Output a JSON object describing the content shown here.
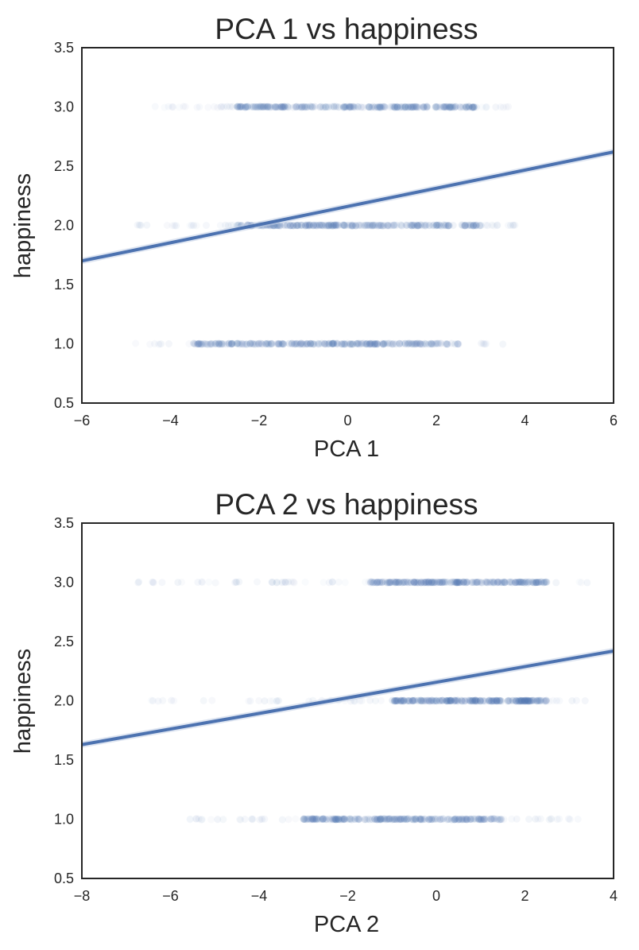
{
  "colors": {
    "series": "#4c72b0",
    "band": "#c3cfe6",
    "axis": "#262626",
    "background": "#ffffff"
  },
  "chart_data": [
    {
      "type": "scatter",
      "title": "PCA 1 vs happiness",
      "xlabel": "PCA 1",
      "ylabel": "happiness",
      "xlim": [
        -6,
        6
      ],
      "ylim": [
        0.5,
        3.5
      ],
      "xticks": [
        "−6",
        "−4",
        "−2",
        "0",
        "2",
        "4",
        "6"
      ],
      "yticks": [
        "0.5",
        "1.0",
        "1.5",
        "2.0",
        "2.5",
        "3.0",
        "3.5"
      ],
      "grid": false,
      "scatter_bands": [
        {
          "y": 3.0,
          "x_range": [
            -4.5,
            3.8
          ],
          "dense_range": [
            -2.5,
            3.0
          ]
        },
        {
          "y": 2.0,
          "x_range": [
            -4.8,
            3.8
          ],
          "dense_range": [
            -2.5,
            3.0
          ]
        },
        {
          "y": 1.0,
          "x_range": [
            -4.8,
            3.7
          ],
          "dense_range": [
            -3.5,
            2.5
          ]
        }
      ],
      "regression_line": {
        "x": [
          -6,
          6
        ],
        "y": [
          1.7,
          2.62
        ]
      }
    },
    {
      "type": "scatter",
      "title": "PCA 2 vs happiness",
      "xlabel": "PCA 2",
      "ylabel": "happiness",
      "xlim": [
        -8,
        4
      ],
      "ylim": [
        0.5,
        3.5
      ],
      "xticks": [
        "−8",
        "−6",
        "−4",
        "−2",
        "0",
        "2",
        "4"
      ],
      "yticks": [
        "0.5",
        "1.0",
        "1.5",
        "2.0",
        "2.5",
        "3.0",
        "3.5"
      ],
      "grid": false,
      "scatter_bands": [
        {
          "y": 3.0,
          "x_range": [
            -6.8,
            3.5
          ],
          "dense_range": [
            -1.5,
            2.5
          ]
        },
        {
          "y": 2.0,
          "x_range": [
            -6.5,
            3.5
          ],
          "dense_range": [
            -1.0,
            2.5
          ]
        },
        {
          "y": 1.0,
          "x_range": [
            -6.0,
            3.2
          ],
          "dense_range": [
            -3.0,
            1.5
          ]
        }
      ],
      "regression_line": {
        "x": [
          -8,
          4
        ],
        "y": [
          1.63,
          2.42
        ]
      }
    }
  ]
}
